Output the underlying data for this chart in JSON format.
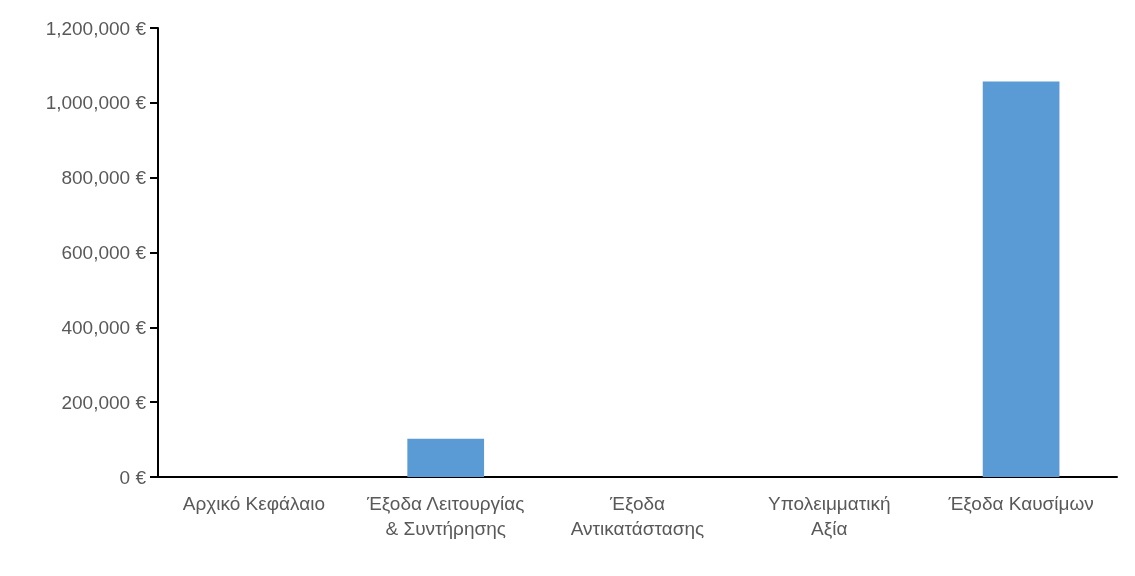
{
  "chart_data": {
    "type": "bar",
    "categories": [
      "Αρχικό Κεφάλαιο",
      "Έξοδα Λειτουργίας & Συντήρησης",
      "Έξοδα Αντικατάστασης",
      "Υπολειμματική Αξία",
      "Έξοδα Καυσίμων"
    ],
    "values": [
      0,
      102000,
      0,
      0,
      1057000
    ],
    "color": "#5b9bd5",
    "ylim": [
      0,
      1200000
    ],
    "yticks": [
      {
        "value": 0,
        "label": "0 €"
      },
      {
        "value": 200000,
        "label": "200,000 €"
      },
      {
        "value": 400000,
        "label": "400,000 €"
      },
      {
        "value": 600000,
        "label": "600,000 €"
      },
      {
        "value": 800000,
        "label": "800,000 €"
      },
      {
        "value": 1000000,
        "label": "1,000,000 €"
      },
      {
        "value": 1200000,
        "label": "1,200,000 €"
      }
    ],
    "data_labels": false
  }
}
